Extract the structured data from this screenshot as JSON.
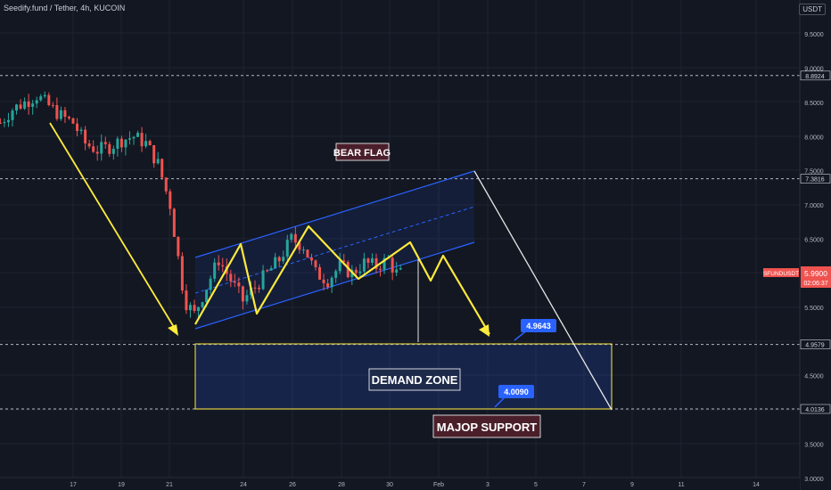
{
  "header": {
    "title": "Seedify.fund / Tether, 4h, KUCOIN",
    "currency_badge": "USDT"
  },
  "colors": {
    "background": "#131722",
    "up": "#26a69a",
    "down": "#ef5350",
    "pattern": "#ffeb3b",
    "channel": "#2962ff",
    "arrow": "#ffffff"
  },
  "chart_data": {
    "type": "candlestick",
    "title": "Seedify.fund / Tether, 4h, KUCOIN",
    "x_tick_labels": [
      "17",
      "19",
      "21",
      "24",
      "26",
      "28",
      "30",
      "Feb",
      "3",
      "5",
      "7",
      "9",
      "11",
      "14"
    ],
    "y_tick_labels": [
      "9.5000",
      "9.0000",
      "8.5000",
      "8.0000",
      "7.5000",
      "7.0000",
      "6.5000",
      "5.5000",
      "4.5000",
      "3.5000",
      "3.0000"
    ],
    "ylim": [
      3.0,
      9.8
    ],
    "price_levels": [
      {
        "label": "8.8924",
        "value": 8.8924
      },
      {
        "label": "7.3816",
        "value": 7.3816
      },
      {
        "label": "4.9579",
        "value": 4.9579
      },
      {
        "label": "4.0136",
        "value": 4.0136
      }
    ],
    "current_price": {
      "symbol": "SFUNDUSDT",
      "value": "5.9900",
      "timer": "02:06:37"
    },
    "annotations": {
      "bear_flag": "BEAR FLAG",
      "demand_zone": "DEMAND ZONE",
      "support": "MAJOP SUPPORT",
      "target_1": "4.9643",
      "target_2": "4.0090"
    },
    "demand_zone_range": [
      4.0136,
      4.9579
    ],
    "close_path_days": [
      14,
      14.5,
      15,
      15.5,
      16,
      16.5,
      17,
      17.5,
      18,
      18.5,
      19,
      19.5,
      20,
      20.5,
      21,
      21.3,
      21.6,
      22,
      22.5,
      23,
      23.5,
      24,
      24.5,
      25,
      25.5,
      26,
      26.5,
      27,
      27.5,
      28,
      28.5,
      29,
      29.5,
      30,
      30.3,
      30.6
    ],
    "close_path_values": [
      8.2,
      8.4,
      8.5,
      8.6,
      8.45,
      8.3,
      8.2,
      7.9,
      7.8,
      7.85,
      7.95,
      8.0,
      7.9,
      7.6,
      7.0,
      6.3,
      5.6,
      5.4,
      5.8,
      6.2,
      5.9,
      5.6,
      5.8,
      6.0,
      6.2,
      6.5,
      6.4,
      6.0,
      5.9,
      6.1,
      6.0,
      6.15,
      6.1,
      6.2,
      6.0,
      5.99
    ]
  }
}
